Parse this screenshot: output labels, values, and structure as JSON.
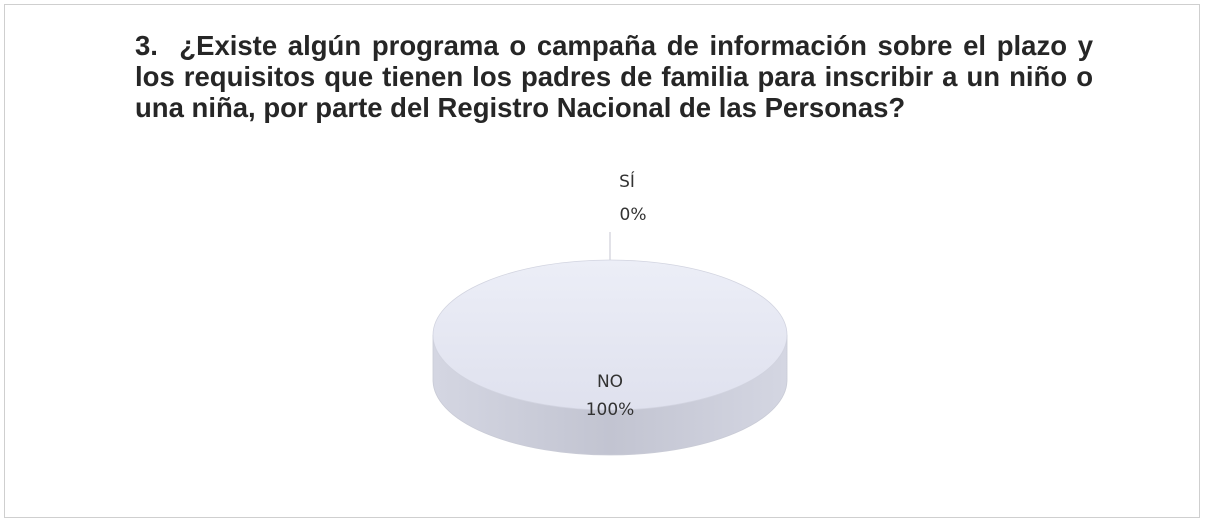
{
  "chart_data": {
    "type": "pie",
    "title": "3.  ¿Existe algún programa o campaña de información sobre el plazo y los requisitos que tienen los padres de familia para inscribir a un niño o una niña, por parte del Registro Nacional de las Personas?",
    "categories": [
      "SÍ",
      "NO"
    ],
    "values": [
      0,
      100
    ],
    "value_labels": [
      "0%",
      "100%"
    ],
    "color": "#e4e6f2"
  }
}
